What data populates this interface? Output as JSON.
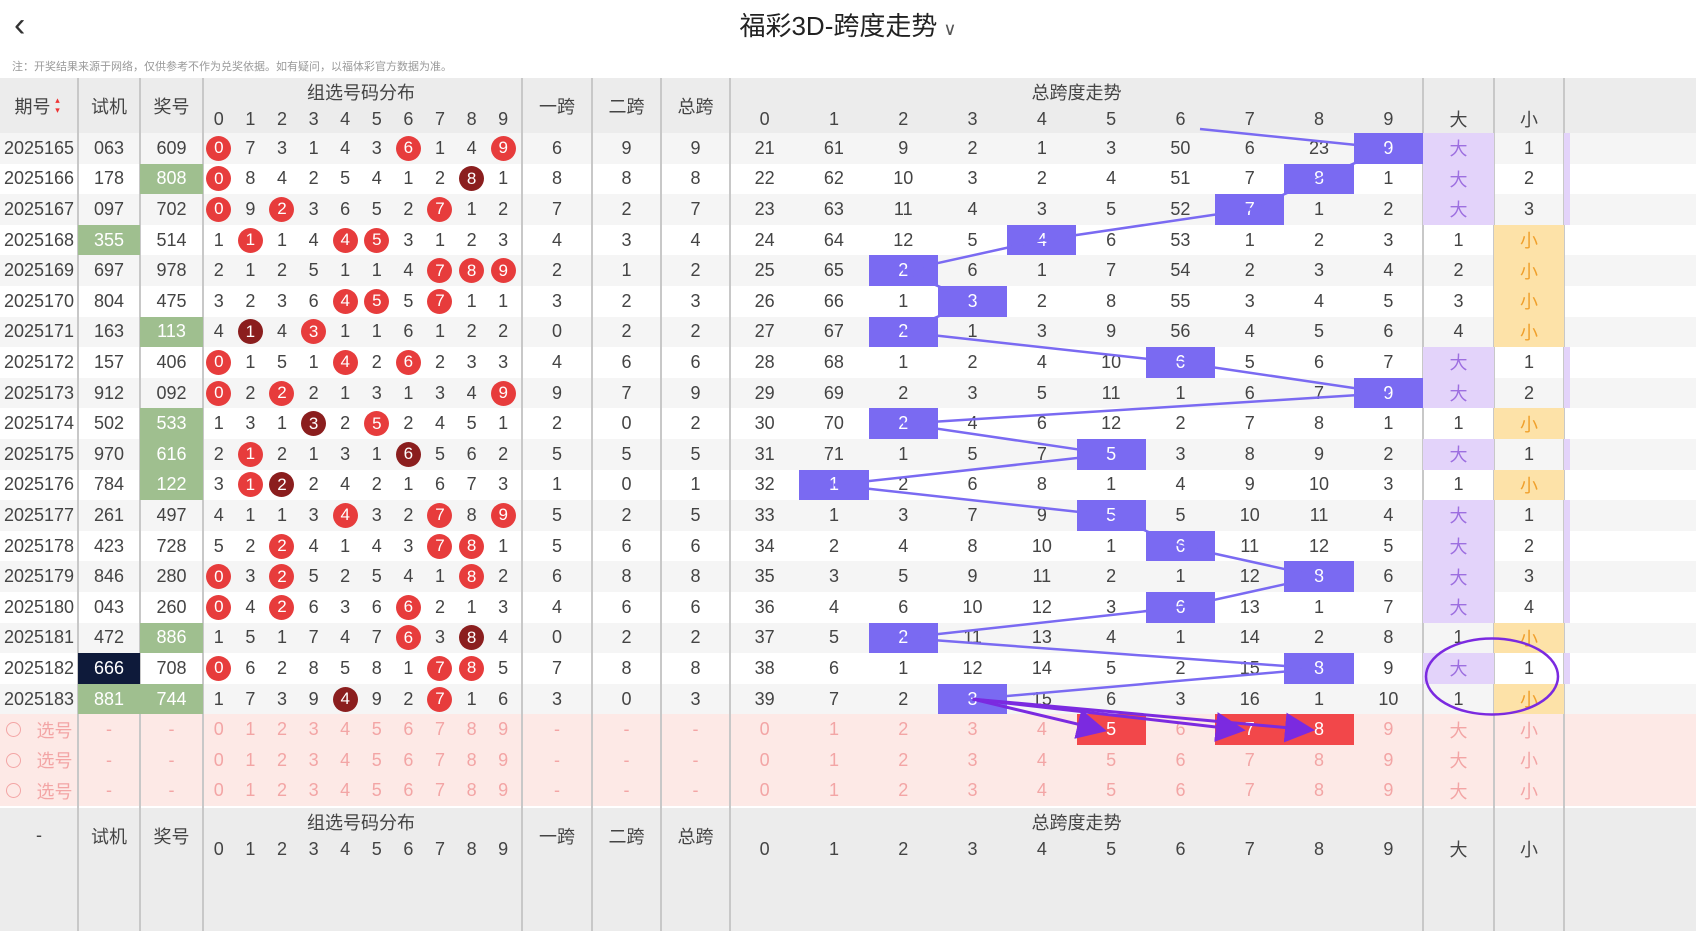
{
  "header": {
    "back_icon": "chevron-left-icon",
    "title": "福彩3D-跨度走势",
    "dropdown_icon": "chevron-down-icon",
    "note": "注：开奖结果来源于网络，仅供参考不作为兑奖依据。如有疑问，以福体彩官方数据为准。"
  },
  "columns": {
    "period": "期号",
    "trial": "试机",
    "prize": "奖号",
    "group_dist": "组选号码分布",
    "span1": "一跨",
    "span2": "二跨",
    "total_span": "总跨",
    "trend": "总跨度走势",
    "big": "大",
    "small": "小",
    "digits": [
      "0",
      "1",
      "2",
      "3",
      "4",
      "5",
      "6",
      "7",
      "8",
      "9"
    ]
  },
  "rows": [
    {
      "period": "2025165",
      "trial": "063",
      "prize": "609",
      "prize_hl": "",
      "dist": [
        "0",
        "7",
        "3",
        "1",
        "4",
        "3",
        "6",
        "1",
        "4",
        "9"
      ],
      "dist_ball": {
        "0": "red",
        "6": "red",
        "9": "red"
      },
      "s1": "6",
      "s2": "9",
      "st": "9",
      "trend": [
        "21",
        "61",
        "9",
        "2",
        "1",
        "3",
        "50",
        "6",
        "23",
        "9"
      ],
      "big": "大",
      "small": "1"
    },
    {
      "period": "2025166",
      "trial": "178",
      "prize": "808",
      "prize_hl": "g",
      "dist": [
        "0",
        "8",
        "4",
        "2",
        "5",
        "4",
        "1",
        "2",
        "8",
        "1"
      ],
      "dist_ball": {
        "0": "red",
        "8": "dark"
      },
      "s1": "8",
      "s2": "8",
      "st": "8",
      "trend": [
        "22",
        "62",
        "10",
        "3",
        "2",
        "4",
        "51",
        "7",
        "8",
        "1"
      ],
      "big": "大",
      "small": "2"
    },
    {
      "period": "2025167",
      "trial": "097",
      "prize": "702",
      "prize_hl": "",
      "dist": [
        "0",
        "9",
        "2",
        "3",
        "6",
        "5",
        "2",
        "7",
        "1",
        "2"
      ],
      "dist_ball": {
        "0": "red",
        "2": "red",
        "7": "red"
      },
      "s1": "7",
      "s2": "2",
      "st": "7",
      "trend": [
        "23",
        "63",
        "11",
        "4",
        "3",
        "5",
        "52",
        "7",
        "1",
        "2"
      ],
      "big": "大",
      "small": "3"
    },
    {
      "period": "2025168",
      "trial": "355",
      "trial_hl": "g",
      "prize": "514",
      "prize_hl": "",
      "dist": [
        "1",
        "1",
        "1",
        "4",
        "4",
        "5",
        "3",
        "1",
        "2",
        "3"
      ],
      "dist_ball": {
        "1": "red",
        "4": "red",
        "5": "red"
      },
      "s1": "4",
      "s2": "3",
      "st": "4",
      "trend": [
        "24",
        "64",
        "12",
        "5",
        "4",
        "6",
        "53",
        "1",
        "2",
        "3"
      ],
      "big": "1",
      "small": "小"
    },
    {
      "period": "2025169",
      "trial": "697",
      "prize": "978",
      "prize_hl": "",
      "dist": [
        "2",
        "1",
        "2",
        "5",
        "1",
        "1",
        "4",
        "7",
        "8",
        "9"
      ],
      "dist_ball": {
        "7": "red",
        "8": "red",
        "9": "red"
      },
      "s1": "2",
      "s2": "1",
      "st": "2",
      "trend": [
        "25",
        "65",
        "2",
        "6",
        "1",
        "7",
        "54",
        "2",
        "3",
        "4"
      ],
      "big": "2",
      "small": "小"
    },
    {
      "period": "2025170",
      "trial": "804",
      "prize": "475",
      "prize_hl": "",
      "dist": [
        "3",
        "2",
        "3",
        "6",
        "4",
        "5",
        "5",
        "7",
        "1",
        "1"
      ],
      "dist_ball": {
        "4": "red",
        "5": "red",
        "7": "red"
      },
      "s1": "3",
      "s2": "2",
      "st": "3",
      "trend": [
        "26",
        "66",
        "1",
        "3",
        "2",
        "8",
        "55",
        "3",
        "4",
        "5"
      ],
      "big": "3",
      "small": "小"
    },
    {
      "period": "2025171",
      "trial": "163",
      "prize": "113",
      "prize_hl": "g",
      "dist": [
        "4",
        "1",
        "4",
        "3",
        "1",
        "1",
        "6",
        "1",
        "2",
        "2"
      ],
      "dist_ball": {
        "1": "dark",
        "3": "red"
      },
      "s1": "0",
      "s2": "2",
      "st": "2",
      "trend": [
        "27",
        "67",
        "2",
        "1",
        "3",
        "9",
        "56",
        "4",
        "5",
        "6"
      ],
      "big": "4",
      "small": "小"
    },
    {
      "period": "2025172",
      "trial": "157",
      "prize": "406",
      "prize_hl": "",
      "dist": [
        "0",
        "1",
        "5",
        "1",
        "4",
        "2",
        "6",
        "2",
        "3",
        "3"
      ],
      "dist_ball": {
        "0": "red",
        "4": "red",
        "6": "red"
      },
      "s1": "4",
      "s2": "6",
      "st": "6",
      "trend": [
        "28",
        "68",
        "1",
        "2",
        "4",
        "10",
        "6",
        "5",
        "6",
        "7"
      ],
      "big": "大",
      "small": "1"
    },
    {
      "period": "2025173",
      "trial": "912",
      "prize": "092",
      "prize_hl": "",
      "dist": [
        "0",
        "2",
        "2",
        "2",
        "1",
        "3",
        "1",
        "3",
        "4",
        "9"
      ],
      "dist_ball": {
        "0": "red",
        "2": "red",
        "9": "red"
      },
      "s1": "9",
      "s2": "7",
      "st": "9",
      "trend": [
        "29",
        "69",
        "2",
        "3",
        "5",
        "11",
        "1",
        "6",
        "7",
        "9"
      ],
      "big": "大",
      "small": "2"
    },
    {
      "period": "2025174",
      "trial": "502",
      "prize": "533",
      "prize_hl": "g",
      "dist": [
        "1",
        "3",
        "1",
        "3",
        "2",
        "5",
        "2",
        "4",
        "5",
        "1"
      ],
      "dist_ball": {
        "3": "dark",
        "5": "red"
      },
      "s1": "2",
      "s2": "0",
      "st": "2",
      "trend": [
        "30",
        "70",
        "2",
        "4",
        "6",
        "12",
        "2",
        "7",
        "8",
        "1"
      ],
      "big": "1",
      "small": "小"
    },
    {
      "period": "2025175",
      "trial": "970",
      "prize": "616",
      "prize_hl": "g",
      "dist": [
        "2",
        "1",
        "2",
        "1",
        "3",
        "1",
        "6",
        "5",
        "6",
        "2"
      ],
      "dist_ball": {
        "1": "red",
        "6": "dark"
      },
      "s1": "5",
      "s2": "5",
      "st": "5",
      "trend": [
        "31",
        "71",
        "1",
        "5",
        "7",
        "5",
        "3",
        "8",
        "9",
        "2"
      ],
      "big": "大",
      "small": "1"
    },
    {
      "period": "2025176",
      "trial": "784",
      "prize": "122",
      "prize_hl": "g",
      "dist": [
        "3",
        "1",
        "2",
        "2",
        "4",
        "2",
        "1",
        "6",
        "7",
        "3"
      ],
      "dist_ball": {
        "1": "red",
        "2": "dark"
      },
      "s1": "1",
      "s2": "0",
      "st": "1",
      "trend": [
        "32",
        "1",
        "2",
        "6",
        "8",
        "1",
        "4",
        "9",
        "10",
        "3"
      ],
      "big": "1",
      "small": "小"
    },
    {
      "period": "2025177",
      "trial": "261",
      "prize": "497",
      "prize_hl": "",
      "dist": [
        "4",
        "1",
        "1",
        "3",
        "4",
        "3",
        "2",
        "7",
        "8",
        "9"
      ],
      "dist_ball": {
        "4": "red",
        "7": "red",
        "9": "red"
      },
      "s1": "5",
      "s2": "2",
      "st": "5",
      "trend": [
        "33",
        "1",
        "3",
        "7",
        "9",
        "5",
        "5",
        "10",
        "11",
        "4"
      ],
      "big": "大",
      "small": "1"
    },
    {
      "period": "2025178",
      "trial": "423",
      "prize": "728",
      "prize_hl": "",
      "dist": [
        "5",
        "2",
        "2",
        "4",
        "1",
        "4",
        "3",
        "7",
        "8",
        "1"
      ],
      "dist_ball": {
        "2": "red",
        "7": "red",
        "8": "red"
      },
      "s1": "5",
      "s2": "6",
      "st": "6",
      "trend": [
        "34",
        "2",
        "4",
        "8",
        "10",
        "1",
        "6",
        "11",
        "12",
        "5"
      ],
      "big": "大",
      "small": "2"
    },
    {
      "period": "2025179",
      "trial": "846",
      "prize": "280",
      "prize_hl": "",
      "dist": [
        "0",
        "3",
        "2",
        "5",
        "2",
        "5",
        "4",
        "1",
        "8",
        "2"
      ],
      "dist_ball": {
        "0": "red",
        "2": "red",
        "8": "red"
      },
      "s1": "6",
      "s2": "8",
      "st": "8",
      "trend": [
        "35",
        "3",
        "5",
        "9",
        "11",
        "2",
        "1",
        "12",
        "8",
        "6"
      ],
      "big": "大",
      "small": "3"
    },
    {
      "period": "2025180",
      "trial": "043",
      "prize": "260",
      "prize_hl": "",
      "dist": [
        "0",
        "4",
        "2",
        "6",
        "3",
        "6",
        "6",
        "2",
        "1",
        "3"
      ],
      "dist_ball": {
        "0": "red",
        "2": "red",
        "6": "red"
      },
      "s1": "4",
      "s2": "6",
      "st": "6",
      "trend": [
        "36",
        "4",
        "6",
        "10",
        "12",
        "3",
        "6",
        "13",
        "1",
        "7"
      ],
      "big": "大",
      "small": "4"
    },
    {
      "period": "2025181",
      "trial": "472",
      "prize": "886",
      "prize_hl": "g",
      "dist": [
        "1",
        "5",
        "1",
        "7",
        "4",
        "7",
        "6",
        "3",
        "8",
        "4"
      ],
      "dist_ball": {
        "6": "red",
        "8": "dark"
      },
      "s1": "0",
      "s2": "2",
      "st": "2",
      "trend": [
        "37",
        "5",
        "2",
        "11",
        "13",
        "4",
        "1",
        "14",
        "2",
        "8"
      ],
      "big": "1",
      "small": "小"
    },
    {
      "period": "2025182",
      "trial": "666",
      "trial_hl": "n",
      "prize": "708",
      "prize_hl": "",
      "dist": [
        "0",
        "6",
        "2",
        "8",
        "5",
        "8",
        "1",
        "7",
        "8",
        "5"
      ],
      "dist_ball": {
        "0": "red",
        "7": "red",
        "8": "red"
      },
      "s1": "7",
      "s2": "8",
      "st": "8",
      "trend": [
        "38",
        "6",
        "1",
        "12",
        "14",
        "5",
        "2",
        "15",
        "8",
        "9"
      ],
      "big": "大",
      "small": "1"
    },
    {
      "period": "2025183",
      "trial": "881",
      "trial_hl": "g",
      "prize": "744",
      "prize_hl": "g",
      "dist": [
        "1",
        "7",
        "3",
        "9",
        "4",
        "9",
        "2",
        "7",
        "1",
        "6"
      ],
      "dist_ball": {
        "4": "dark",
        "7": "red"
      },
      "s1": "3",
      "s2": "0",
      "st": "3",
      "trend": [
        "39",
        "7",
        "2",
        "3",
        "15",
        "6",
        "3",
        "16",
        "1",
        "10"
      ],
      "big": "1",
      "small": "小"
    }
  ],
  "pick_rows": {
    "label": "选号",
    "dash": "-",
    "big": "大",
    "small": "小",
    "highlighted_trend": [
      "5",
      "7",
      "8"
    ]
  },
  "footer": {
    "period_dash": "-"
  },
  "colors": {
    "ball_red": "#e73c3c",
    "ball_dark": "#8b1e1e",
    "green_hl": "#9fbf8f",
    "navy_hl": "#0e1a3a",
    "span_box": "#7a6af2",
    "big_bg": "#e3d3fa",
    "small_bg": "#fde2a8",
    "pick_bg": "#fde9e6",
    "annotation": "#7b2ae0"
  }
}
